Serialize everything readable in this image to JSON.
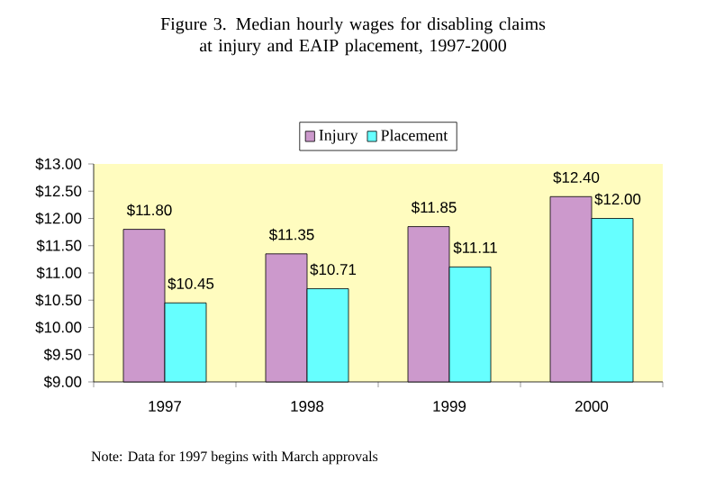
{
  "chart_data": {
    "type": "bar",
    "title": "Figure 3. Median hourly wages for disabling claims\nat injury and EAIP placement, 1997-2000",
    "categories": [
      "1997",
      "1998",
      "1999",
      "2000"
    ],
    "series": [
      {
        "name": "Injury",
        "color": "#cc99cc",
        "values": [
          11.8,
          11.35,
          11.85,
          12.4
        ],
        "value_labels": [
          "$11.80",
          "$11.35",
          "$11.85",
          "$12.40"
        ]
      },
      {
        "name": "Placement",
        "color": "#66ffff",
        "values": [
          10.45,
          10.71,
          11.11,
          12.0
        ],
        "value_labels": [
          "$10.45",
          "$10.71",
          "$11.11",
          "$12.00"
        ]
      }
    ],
    "ylim": [
      9,
      13
    ],
    "yticks": [
      {
        "value": 9,
        "label": "$9.00"
      },
      {
        "value": 9.5,
        "label": "$9.50"
      },
      {
        "value": 10,
        "label": "$10.00"
      },
      {
        "value": 10.5,
        "label": "$10.50"
      },
      {
        "value": 11,
        "label": "$11.00"
      },
      {
        "value": 11.5,
        "label": "$11.50"
      },
      {
        "value": 12,
        "label": "$12.00"
      },
      {
        "value": 12.5,
        "label": "$12.50"
      },
      {
        "value": 13,
        "label": "$13.00"
      }
    ],
    "legend": "top",
    "annotations": [
      "Note:  Data for 1997 begins with March approvals"
    ]
  }
}
